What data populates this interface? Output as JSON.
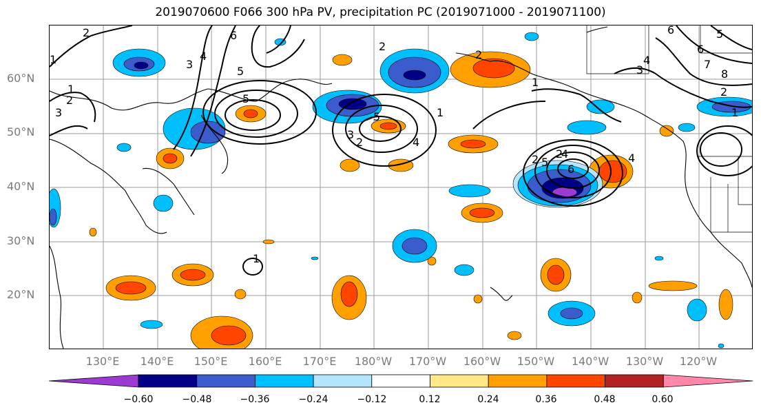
{
  "title": "2019070600 F066 300 hPa PV, precipitation PC (2019071000 - 2019071100)",
  "lat_labels": [
    "60°N",
    "50°N",
    "40°N",
    "30°N",
    "20°N"
  ],
  "lon_labels": [
    "130°E",
    "140°E",
    "150°E",
    "160°E",
    "170°E",
    "180°W",
    "170°W",
    "160°W",
    "150°W",
    "140°W",
    "130°W",
    "120°W"
  ],
  "colorbar": {
    "ticks": [
      "−0.60",
      "−0.48",
      "−0.36",
      "−0.24",
      "−0.12",
      "0.12",
      "0.24",
      "0.36",
      "0.48",
      "0.60"
    ],
    "colors": [
      "#9b3bd3",
      "#000087",
      "#3a5ccc",
      "#00bfff",
      "#b3e5fc",
      "#ffffff",
      "#ffe885",
      "#ffa000",
      "#ff4500",
      "#b22222",
      "#ff88aa"
    ]
  },
  "contour_labels": [
    "2",
    "1",
    "6",
    "5",
    "4",
    "3",
    "1",
    "2",
    "3",
    "5",
    "5",
    "2",
    "3",
    "4",
    "1",
    "2",
    "2",
    "4",
    "6",
    "5",
    "4",
    "1",
    "2",
    "2",
    "1",
    "6",
    "5",
    "6",
    "4",
    "3",
    "7",
    "8",
    "2",
    "1"
  ]
}
